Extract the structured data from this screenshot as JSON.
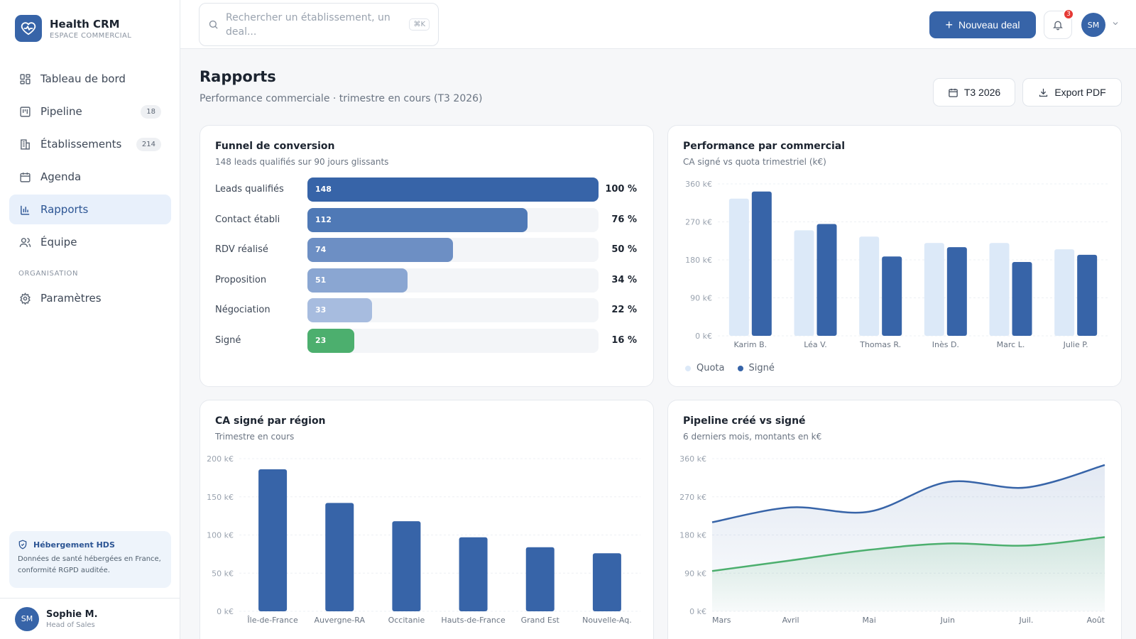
{
  "app": {
    "name": "Health CRM",
    "subtitle": "ESPACE COMMERCIAL"
  },
  "sidebar": {
    "items": [
      {
        "label": "Tableau de bord",
        "icon": "dashboard-icon",
        "badge": ""
      },
      {
        "label": "Pipeline",
        "icon": "pipeline-icon",
        "badge": "18"
      },
      {
        "label": "Établissements",
        "icon": "building-icon",
        "badge": "214"
      },
      {
        "label": "Agenda",
        "icon": "calendar-icon",
        "badge": ""
      },
      {
        "label": "Rapports",
        "icon": "bar-chart-icon",
        "badge": "",
        "active": true
      },
      {
        "label": "Équipe",
        "icon": "users-icon",
        "badge": ""
      }
    ],
    "section_label": "ORGANISATION",
    "settings_label": "Paramètres",
    "hds": {
      "title": "Hébergement HDS",
      "text": "Données de santé hébergées en France, conformité RGPD auditée."
    },
    "user": {
      "initials": "SM",
      "name": "Sophie M.",
      "role": "Head of Sales"
    }
  },
  "topbar": {
    "search_placeholder": "Rechercher un établissement, un deal...",
    "shortcut": "⌘K",
    "new_deal_label": "Nouveau deal",
    "notifications_count": "3",
    "avatar_initials": "SM"
  },
  "header": {
    "title": "Rapports",
    "subtitle": "Performance commerciale · trimestre en cours (T3 2026)",
    "period_label": "T3 2026",
    "export_label": "Export PDF"
  },
  "funnel": {
    "title": "Funnel de conversion",
    "subtitle": "148 leads qualifiés sur 90 jours glissants",
    "stages": [
      {
        "label": "Leads qualifiés",
        "value": 148,
        "pct": "100 %",
        "color": "#3764a8"
      },
      {
        "label": "Contact établi",
        "value": 112,
        "pct": "76 %",
        "color": "#4f79b6"
      },
      {
        "label": "RDV réalisé",
        "value": 74,
        "pct": "50 %",
        "color": "#6d8fc4"
      },
      {
        "label": "Proposition",
        "value": 51,
        "pct": "34 %",
        "color": "#8aa6d2"
      },
      {
        "label": "Négociation",
        "value": 33,
        "pct": "22 %",
        "color": "#a7bcdf"
      },
      {
        "label": "Signé",
        "value": 23,
        "pct": "16 %",
        "color": "#4caf6e"
      }
    ]
  },
  "perf_card": {
    "title": "Performance par commercial",
    "subtitle": "CA signé vs quota trimestriel (k€)"
  },
  "region_card": {
    "title": "CA signé par région",
    "subtitle": "Trimestre en cours"
  },
  "pipeline_card": {
    "title": "Pipeline créé vs signé",
    "subtitle": "6 derniers mois, montants en k€"
  },
  "chart_data": [
    {
      "type": "bar",
      "categories": [
        "Karim B.",
        "Léa V.",
        "Thomas R.",
        "Inès D.",
        "Marc L.",
        "Julie P."
      ],
      "series": [
        {
          "name": "Quota",
          "values": [
            325,
            250,
            235,
            220,
            220,
            205
          ],
          "color": "#dce9f8"
        },
        {
          "name": "Signé",
          "values": [
            342,
            265,
            188,
            210,
            175,
            192
          ],
          "color": "#3764a8"
        }
      ],
      "y_ticks": [
        "0 k€",
        "90 k€",
        "180 k€",
        "270 k€",
        "360 k€"
      ],
      "ylim": [
        0,
        360
      ]
    },
    {
      "type": "bar",
      "categories": [
        "Île-de-France",
        "Auvergne-RA",
        "Occitanie",
        "Hauts-de-France",
        "Grand Est",
        "Nouvelle-Aq."
      ],
      "values": [
        186,
        142,
        118,
        97,
        84,
        76
      ],
      "color": "#3764a8",
      "y_ticks": [
        "0 k€",
        "50 k€",
        "100 k€",
        "150 k€",
        "200 k€"
      ],
      "ylim": [
        0,
        200
      ]
    },
    {
      "type": "line",
      "x": [
        "Mars",
        "Avril",
        "Mai",
        "Juin",
        "Juil.",
        "Août"
      ],
      "series": [
        {
          "name": "Pipeline créé",
          "values": [
            210,
            245,
            235,
            305,
            292,
            345
          ],
          "color": "#3764a8"
        },
        {
          "name": "Signé",
          "values": [
            95,
            120,
            145,
            160,
            155,
            175
          ],
          "color": "#4caf6e"
        }
      ],
      "y_ticks": [
        "0 k€",
        "90 k€",
        "180 k€",
        "270 k€",
        "360 k€"
      ],
      "ylim": [
        0,
        360
      ]
    }
  ]
}
